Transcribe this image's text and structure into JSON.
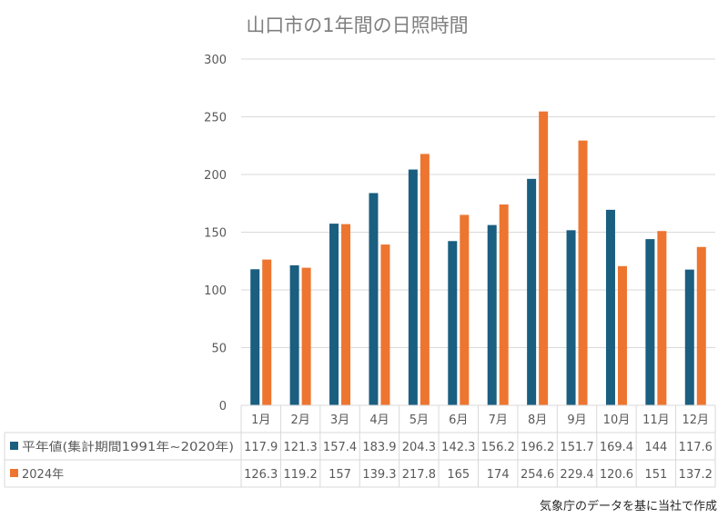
{
  "title": "山口市の1年間の日照時間",
  "source": "気象庁のデータを基に当社で作成",
  "colors": {
    "series1": "#1a5e80",
    "series2": "#ed7530",
    "grid": "#d9d9d9",
    "text": "#595959"
  },
  "chart_data": {
    "type": "bar",
    "title": "山口市の1年間の日照時間",
    "categories": [
      "1月",
      "2月",
      "3月",
      "4月",
      "5月",
      "6月",
      "7月",
      "8月",
      "9月",
      "10月",
      "11月",
      "12月"
    ],
    "series": [
      {
        "name": "平年値(集計期間1991年~2020年)",
        "values": [
          117.9,
          121.3,
          157.4,
          183.9,
          204.3,
          142.3,
          156.2,
          196.2,
          151.7,
          169.4,
          144,
          117.6
        ],
        "labels": [
          "117.9",
          "121.3",
          "157.4",
          "183.9",
          "204.3",
          "142.3",
          "156.2",
          "196.2",
          "151.7",
          "169.4",
          "144",
          "117.6"
        ]
      },
      {
        "name": "2024年",
        "values": [
          126.3,
          119.2,
          157,
          139.3,
          217.8,
          165,
          174,
          254.6,
          229.4,
          120.6,
          151,
          137.2
        ],
        "labels": [
          "126.3",
          "119.2",
          "157",
          "139.3",
          "217.8",
          "165",
          "174",
          "254.6",
          "229.4",
          "120.6",
          "151",
          "137.2"
        ]
      }
    ],
    "yticks": [
      "0",
      "50",
      "100",
      "150",
      "200",
      "250",
      "300"
    ],
    "ylim": [
      0,
      300
    ],
    "grid": true,
    "legend": "data-table-bottom"
  }
}
